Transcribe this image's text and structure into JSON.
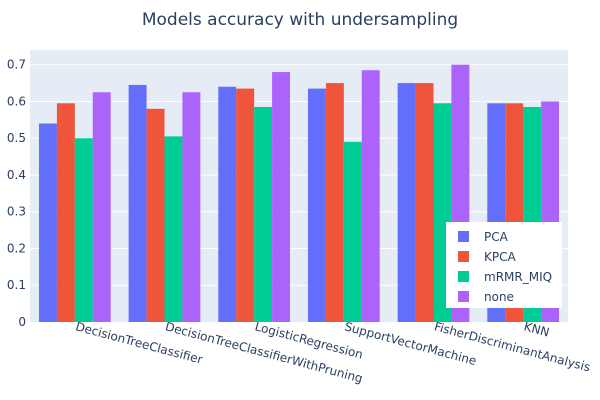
{
  "chart_data": {
    "type": "bar",
    "title": "Models accuracy with undersampling",
    "xlabel": "",
    "ylabel": "",
    "categories": [
      "DecisionTreeClassifier",
      "DecisionTreeClassifierWithPruning",
      "LogisticRegression",
      "SupportVectorMachine",
      "FisherDiscriminantAnalysis",
      "KNN"
    ],
    "series": [
      {
        "name": "PCA",
        "color": "#636efa",
        "values": [
          0.54,
          0.645,
          0.64,
          0.635,
          0.65,
          0.595
        ]
      },
      {
        "name": "KPCA",
        "color": "#ef553b",
        "values": [
          0.595,
          0.58,
          0.635,
          0.65,
          0.65,
          0.595
        ]
      },
      {
        "name": "mRMR_MIQ",
        "color": "#00cc96",
        "values": [
          0.5,
          0.505,
          0.585,
          0.49,
          0.595,
          0.585
        ]
      },
      {
        "name": "none",
        "color": "#ab63fa",
        "values": [
          0.625,
          0.625,
          0.68,
          0.685,
          0.7,
          0.6
        ]
      }
    ],
    "yticks": [
      0,
      0.1,
      0.2,
      0.3,
      0.4,
      0.5,
      0.6,
      0.7
    ],
    "ylim": [
      0,
      0.74
    ],
    "grid": true,
    "legend_position": "bottom-right",
    "background_color": "#e5ecf6"
  }
}
